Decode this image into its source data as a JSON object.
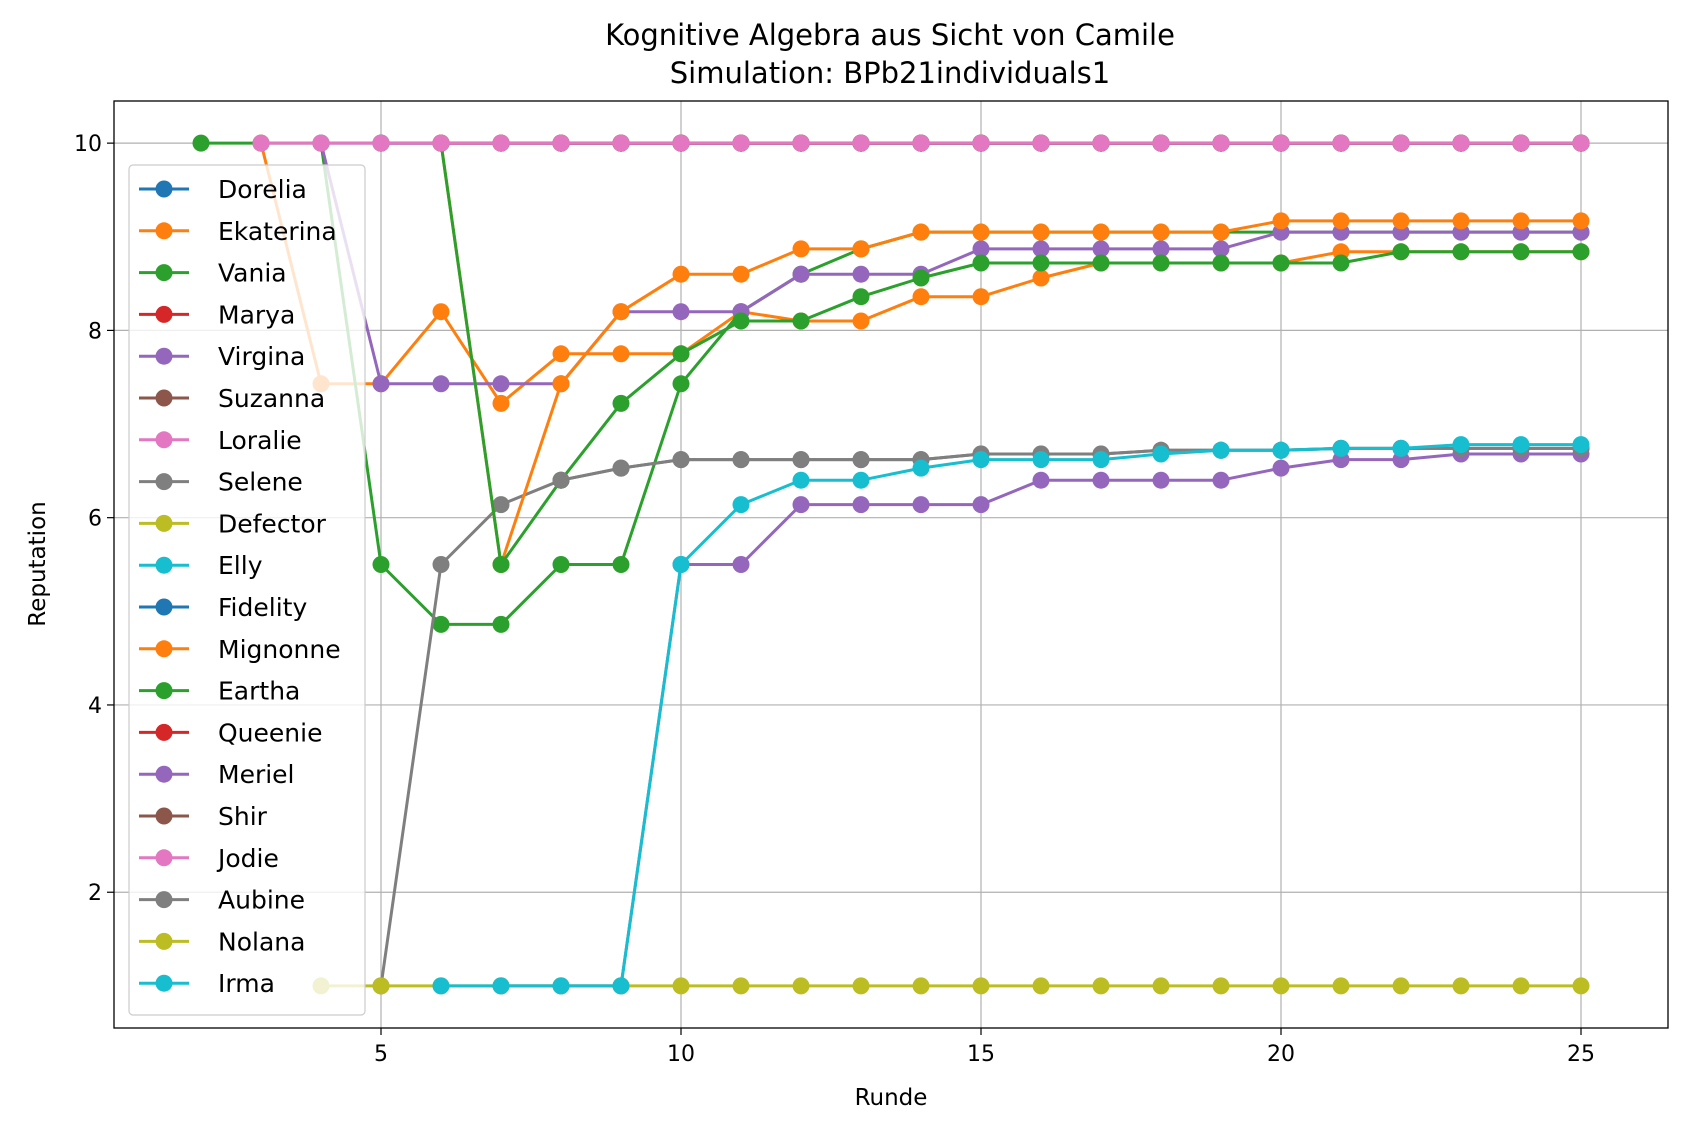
{
  "chart_data": {
    "type": "line",
    "title": "Kognitive Algebra aus Sicht von Camile",
    "subtitle": "Simulation: BPb21individuals1",
    "xlabel": "Runde",
    "ylabel": "Reputation",
    "xlim": [
      0.55,
      26.45
    ],
    "ylim": [
      0.55,
      10.45
    ],
    "xticks": [
      5,
      10,
      15,
      20,
      25
    ],
    "yticks": [
      2,
      4,
      6,
      8,
      10
    ],
    "grid": true,
    "legend_position": "left",
    "series": [
      {
        "name": "Dorelia",
        "color": "#1f77b4",
        "x": [
          4,
          5,
          6,
          7,
          8,
          9,
          10,
          11,
          12,
          13,
          14,
          15,
          16,
          17,
          18,
          19,
          20,
          21,
          22,
          23,
          24,
          25
        ],
        "y": [
          10,
          10,
          10,
          10,
          10,
          10,
          10,
          10,
          10,
          10,
          10,
          10,
          10,
          10,
          10,
          10,
          10,
          10,
          10,
          10,
          10,
          10
        ]
      },
      {
        "name": "Ekaterina",
        "color": "#ff7f0e",
        "x": [
          3,
          4,
          5,
          6,
          7,
          8,
          9,
          10,
          11,
          12,
          13,
          14,
          15,
          16,
          17,
          18,
          19,
          20,
          21,
          22,
          23,
          24,
          25
        ],
        "y": [
          10,
          7.43,
          7.43,
          8.2,
          7.22,
          7.75,
          7.75,
          7.75,
          8.2,
          8.1,
          8.1,
          8.36,
          8.36,
          8.56,
          8.72,
          8.72,
          8.72,
          8.72,
          8.84,
          8.84,
          8.84,
          8.84,
          8.84
        ]
      },
      {
        "name": "Vania",
        "color": "#2ca02c",
        "x": [
          2,
          3,
          4,
          5,
          6,
          7,
          8,
          9,
          10,
          11,
          12,
          13,
          14,
          15,
          16,
          17,
          18,
          19,
          20,
          21,
          22,
          23,
          24,
          25
        ],
        "y": [
          10,
          10,
          10,
          5.5,
          4.86,
          4.86,
          5.5,
          5.5,
          7.43,
          8.2,
          8.6,
          8.87,
          9.05,
          9.05,
          9.05,
          9.05,
          9.05,
          9.05,
          9.05,
          9.05,
          9.05,
          9.05,
          9.05,
          9.05
        ]
      },
      {
        "name": "Marya",
        "color": "#d62728",
        "x": [
          5,
          6,
          7,
          8,
          9,
          10,
          11,
          12,
          13,
          14,
          15,
          16,
          17,
          18,
          19,
          20,
          21,
          22,
          23,
          24,
          25
        ],
        "y": [
          10,
          10,
          10,
          10,
          10,
          10,
          10,
          10,
          10,
          10,
          10,
          10,
          10,
          10,
          10,
          10,
          10,
          10,
          10,
          10,
          10
        ]
      },
      {
        "name": "Virgina",
        "color": "#9467bd",
        "x": [
          4,
          5,
          6,
          7,
          8,
          9,
          10,
          11,
          12,
          13,
          14,
          15,
          16,
          17,
          18,
          19,
          20,
          21,
          22,
          23,
          24,
          25
        ],
        "y": [
          10,
          7.43,
          7.43,
          7.43,
          7.43,
          8.2,
          8.2,
          8.2,
          8.6,
          8.6,
          8.6,
          8.87,
          8.87,
          8.87,
          8.87,
          8.87,
          9.05,
          9.05,
          9.05,
          9.05,
          9.05,
          9.05
        ]
      },
      {
        "name": "Suzanna",
        "color": "#8c564b",
        "x": [
          8,
          9,
          10,
          11,
          12,
          13,
          14,
          15,
          16,
          17,
          18,
          19,
          20,
          21,
          22,
          23,
          24,
          25
        ],
        "y": [
          10,
          10,
          10,
          10,
          10,
          10,
          10,
          10,
          10,
          10,
          10,
          10,
          10,
          10,
          10,
          10,
          10,
          10
        ]
      },
      {
        "name": "Loralie",
        "color": "#e377c2",
        "x": [
          9,
          10,
          11,
          12,
          13,
          14,
          15,
          16,
          17,
          18,
          19,
          20,
          21,
          22,
          23,
          24,
          25
        ],
        "y": [
          10,
          10,
          10,
          10,
          10,
          10,
          10,
          10,
          10,
          10,
          10,
          10,
          10,
          10,
          10,
          10,
          10
        ]
      },
      {
        "name": "Selene",
        "color": "#7f7f7f",
        "x": [
          5,
          6,
          7,
          8,
          9,
          10,
          11,
          12,
          13,
          14,
          15,
          16,
          17,
          18,
          19,
          20,
          21,
          22,
          23,
          24,
          25
        ],
        "y": [
          1,
          5.5,
          6.14,
          6.4,
          6.53,
          6.62,
          6.62,
          6.62,
          6.62,
          6.62,
          6.68,
          6.68,
          6.68,
          6.72,
          6.72,
          6.72,
          6.74,
          6.74,
          6.74,
          6.74,
          6.74
        ]
      },
      {
        "name": "Defector",
        "color": "#bcbd22",
        "x": [
          11,
          12,
          13,
          14,
          15,
          16,
          17,
          18,
          19,
          20,
          21,
          22,
          23,
          24,
          25
        ],
        "y": [
          10,
          10,
          10,
          10,
          10,
          10,
          10,
          10,
          10,
          10,
          10,
          10,
          10,
          10,
          10
        ]
      },
      {
        "name": "Elly",
        "color": "#17becf",
        "x": [
          13,
          14,
          15,
          16,
          17,
          18,
          19,
          20,
          21,
          22,
          23,
          24,
          25
        ],
        "y": [
          10,
          10,
          10,
          10,
          10,
          10,
          10,
          10,
          10,
          10,
          10,
          10,
          10
        ]
      },
      {
        "name": "Fidelity",
        "color": "#1f77b4",
        "x": [
          5,
          6,
          7,
          8,
          9,
          10,
          11,
          12,
          13,
          14,
          15,
          16,
          17,
          18,
          19,
          20,
          21,
          22,
          23,
          24,
          25
        ],
        "y": [
          10,
          10,
          10,
          10,
          10,
          10,
          10,
          10,
          10,
          10,
          10,
          10,
          10,
          10,
          10,
          10,
          10,
          10,
          10,
          10,
          10
        ]
      },
      {
        "name": "Mignonne",
        "color": "#ff7f0e",
        "x": [
          6,
          7,
          8,
          9,
          10,
          11,
          12,
          13,
          14,
          15,
          16,
          17,
          18,
          19,
          20,
          21,
          22,
          23,
          24,
          25
        ],
        "y": [
          10,
          5.5,
          7.43,
          8.2,
          8.6,
          8.6,
          8.87,
          8.87,
          9.05,
          9.05,
          9.05,
          9.05,
          9.05,
          9.05,
          9.17,
          9.17,
          9.17,
          9.17,
          9.17,
          9.17
        ]
      },
      {
        "name": "Eartha",
        "color": "#2ca02c",
        "x": [
          6,
          7,
          8,
          9,
          10,
          11,
          12,
          13,
          14,
          15,
          16,
          17,
          18,
          19,
          20,
          21,
          22,
          23,
          24,
          25
        ],
        "y": [
          10,
          5.5,
          6.4,
          7.22,
          7.75,
          8.1,
          8.1,
          8.36,
          8.56,
          8.72,
          8.72,
          8.72,
          8.72,
          8.72,
          8.72,
          8.72,
          8.84,
          8.84,
          8.84,
          8.84
        ]
      },
      {
        "name": "Queenie",
        "color": "#d62728",
        "x": [
          6,
          7,
          8,
          9,
          10,
          11,
          12,
          13,
          14,
          15,
          16,
          17,
          18,
          19,
          20,
          21,
          22,
          23,
          24,
          25
        ],
        "y": [
          10,
          10,
          10,
          10,
          10,
          10,
          10,
          10,
          10,
          10,
          10,
          10,
          10,
          10,
          10,
          10,
          10,
          10,
          10,
          10
        ]
      },
      {
        "name": "Meriel",
        "color": "#9467bd",
        "x": [
          7,
          8,
          9,
          10,
          11,
          12,
          13,
          14,
          15,
          16,
          17,
          18,
          19,
          20,
          21,
          22,
          23,
          24,
          25
        ],
        "y": [
          1,
          1,
          1,
          5.5,
          5.5,
          6.14,
          6.14,
          6.14,
          6.14,
          6.4,
          6.4,
          6.4,
          6.4,
          6.53,
          6.62,
          6.62,
          6.68,
          6.68,
          6.68
        ]
      },
      {
        "name": "Shir",
        "color": "#8c564b",
        "x": [
          8,
          9,
          10,
          11,
          12,
          13,
          14,
          15,
          16,
          17,
          18,
          19,
          20,
          21,
          22,
          23,
          24,
          25
        ],
        "y": [
          10,
          10,
          10,
          10,
          10,
          10,
          10,
          10,
          10,
          10,
          10,
          10,
          10,
          10,
          10,
          10,
          10,
          10
        ]
      },
      {
        "name": "Jodie",
        "color": "#e377c2",
        "x": [
          3,
          4,
          5,
          6,
          7,
          8,
          9,
          10,
          11,
          12,
          13,
          14,
          15,
          16,
          17,
          18,
          19,
          20,
          21,
          22,
          23,
          24,
          25
        ],
        "y": [
          10,
          10,
          10,
          10,
          10,
          10,
          10,
          10,
          10,
          10,
          10,
          10,
          10,
          10,
          10,
          10,
          10,
          10,
          10,
          10,
          10,
          10,
          10
        ]
      },
      {
        "name": "Aubine",
        "color": "#7f7f7f",
        "x": [
          8,
          9,
          10,
          11,
          12,
          13,
          14,
          15,
          16,
          17,
          18,
          19,
          20,
          21,
          22,
          23,
          24,
          25
        ],
        "y": [
          6.4,
          6.53,
          6.62,
          6.62,
          6.62,
          6.62,
          6.62,
          6.68,
          6.68,
          6.68,
          6.72,
          6.72,
          6.72,
          6.74,
          6.74,
          6.74,
          6.74,
          6.74
        ]
      },
      {
        "name": "Nolana",
        "color": "#bcbd22",
        "x": [
          4,
          5,
          6,
          7,
          8,
          9,
          10,
          11,
          12,
          13,
          14,
          15,
          16,
          17,
          18,
          19,
          20,
          21,
          22,
          23,
          24,
          25
        ],
        "y": [
          1,
          1,
          1,
          1,
          1,
          1,
          1,
          1,
          1,
          1,
          1,
          1,
          1,
          1,
          1,
          1,
          1,
          1,
          1,
          1,
          1,
          1
        ]
      },
      {
        "name": "Irma",
        "color": "#17becf",
        "x": [
          6,
          7,
          8,
          9,
          10,
          11,
          12,
          13,
          14,
          15,
          16,
          17,
          18,
          19,
          20,
          21,
          22,
          23,
          24,
          25
        ],
        "y": [
          1,
          1,
          1,
          1,
          5.5,
          6.14,
          6.4,
          6.4,
          6.53,
          6.62,
          6.62,
          6.62,
          6.68,
          6.72,
          6.72,
          6.74,
          6.74,
          6.78,
          6.78,
          6.78
        ]
      }
    ]
  }
}
